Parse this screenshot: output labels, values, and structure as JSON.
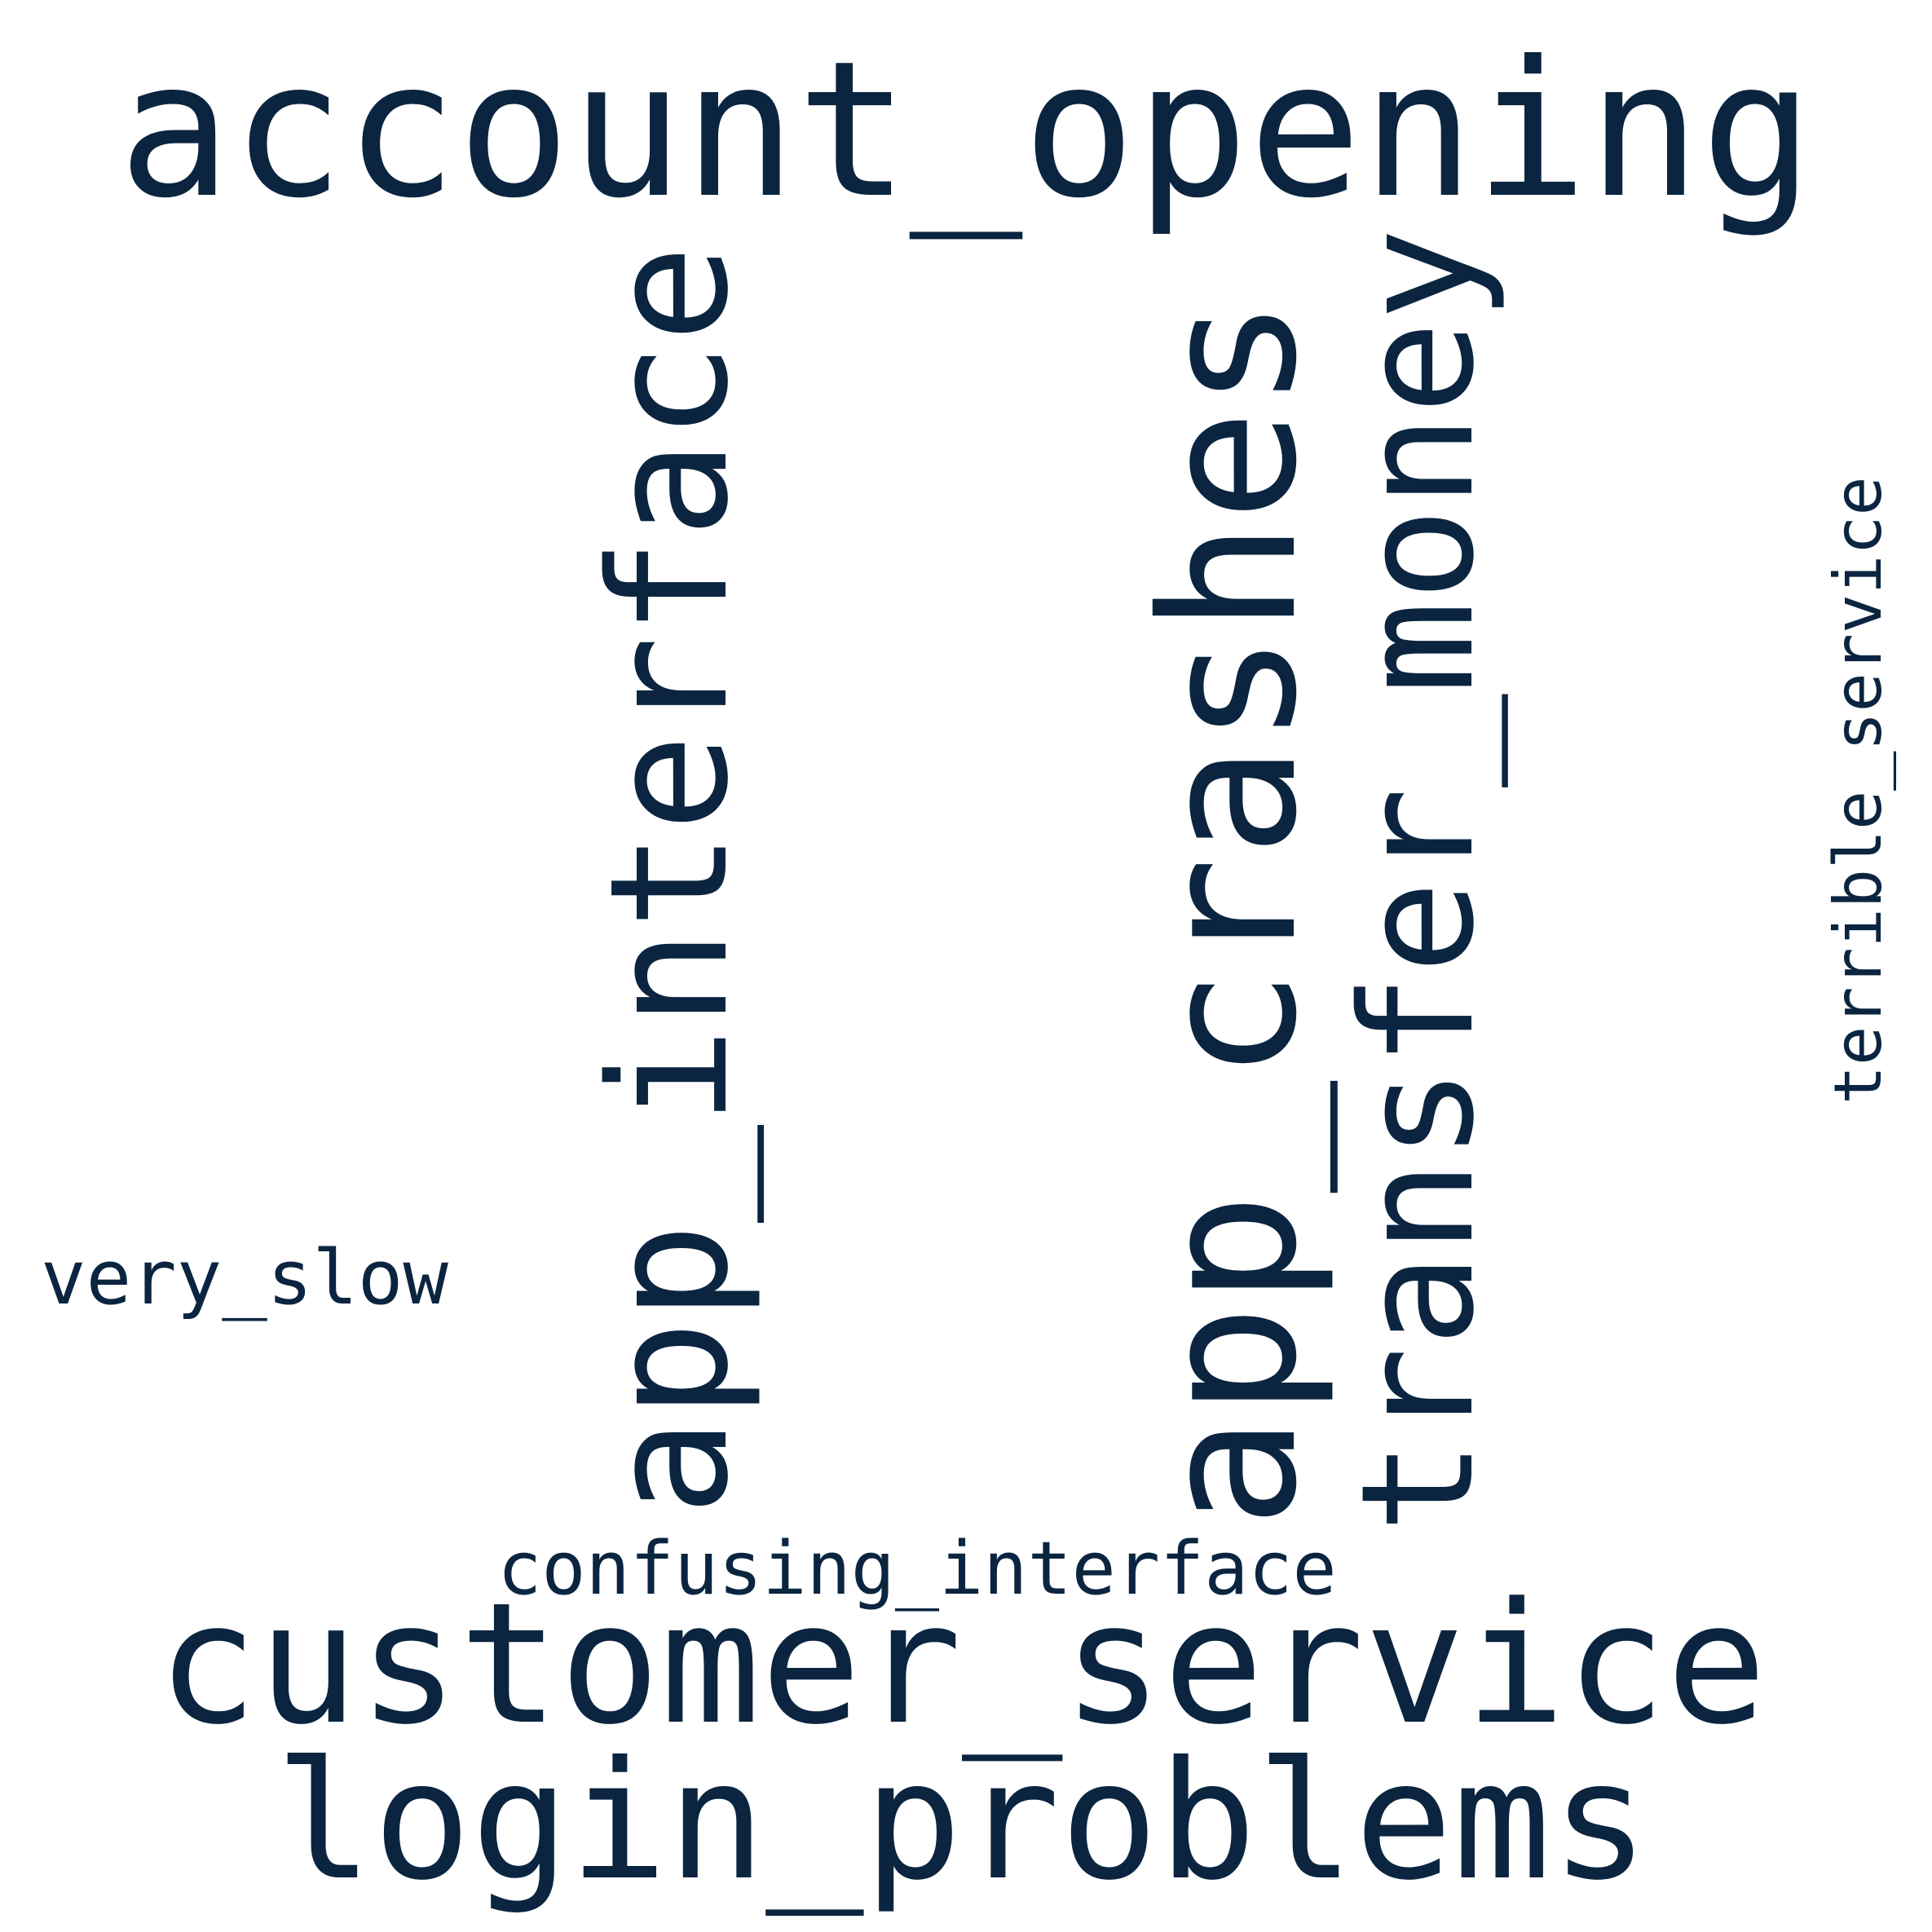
{
  "palette": {
    "background": "#ffffff",
    "text": "#0b2540"
  },
  "words": [
    {
      "key": "account_opening",
      "text": "account_opening",
      "orientation": "horizontal"
    },
    {
      "key": "customer_service",
      "text": "customer_service",
      "orientation": "horizontal"
    },
    {
      "key": "login_problems",
      "text": "login_problems",
      "orientation": "horizontal"
    },
    {
      "key": "app_interface",
      "text": "app_interface",
      "orientation": "vertical"
    },
    {
      "key": "app_crashes",
      "text": "app_crashes",
      "orientation": "vertical"
    },
    {
      "key": "transfer_money",
      "text": "transfer_money",
      "orientation": "vertical"
    },
    {
      "key": "terrible_service",
      "text": "terrible_service",
      "orientation": "vertical"
    },
    {
      "key": "confusing_interface",
      "text": "confusing_interface",
      "orientation": "horizontal"
    },
    {
      "key": "very_slow",
      "text": "very_slow",
      "orientation": "horizontal"
    }
  ]
}
